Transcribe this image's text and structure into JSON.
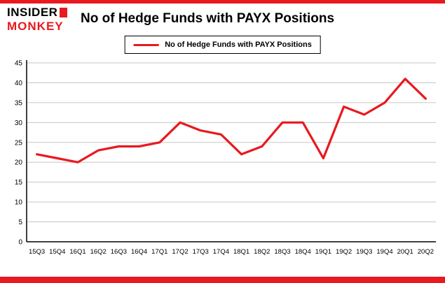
{
  "brand": {
    "name_top": "INSIDER",
    "name_bottom": "MONKEY",
    "accent": "#e8191f"
  },
  "header": {
    "title": "No of Hedge Funds with PAYX Positions"
  },
  "legend": {
    "label": "No of Hedge Funds with PAYX Positions"
  },
  "chart_data": {
    "type": "line",
    "title": "No of Hedge Funds with PAYX Positions",
    "categories": [
      "15Q3",
      "15Q4",
      "16Q1",
      "16Q2",
      "16Q3",
      "16Q4",
      "17Q1",
      "17Q2",
      "17Q3",
      "17Q4",
      "18Q1",
      "18Q2",
      "18Q3",
      "18Q4",
      "19Q1",
      "19Q2",
      "19Q3",
      "19Q4",
      "20Q1",
      "20Q2"
    ],
    "values": [
      22,
      21,
      20,
      23,
      24,
      24,
      25,
      30,
      28,
      27,
      22,
      24,
      30,
      30,
      21,
      34,
      32,
      35,
      41,
      36
    ],
    "xlabel": "",
    "ylabel": "",
    "ylim": [
      0,
      45
    ],
    "ytick_step": 5,
    "grid": true,
    "legend_position": "top-center",
    "line_color": "#e8191f",
    "grid_color": "#c6c6c6",
    "axis_color": "#000000"
  }
}
